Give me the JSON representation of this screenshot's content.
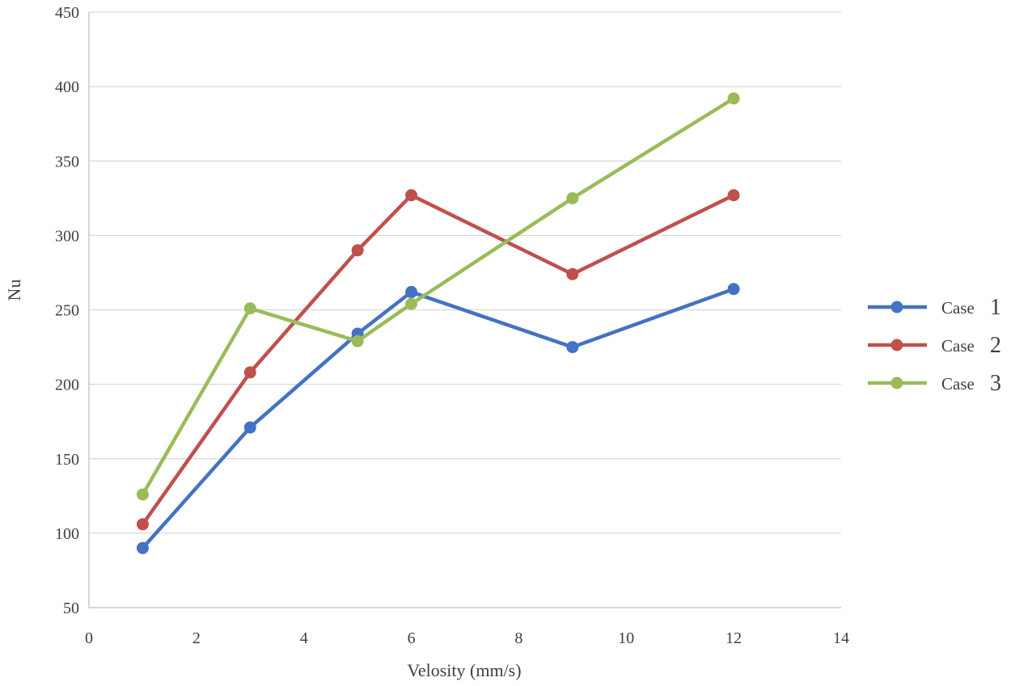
{
  "chart_data": {
    "type": "line",
    "title": "",
    "xlabel": "Velosity (mm/s)",
    "ylabel": "Nu",
    "xlim": [
      0,
      14
    ],
    "ylim": [
      50,
      450
    ],
    "xticks": [
      0,
      2,
      4,
      6,
      8,
      10,
      12,
      14
    ],
    "yticks": [
      50,
      100,
      150,
      200,
      250,
      300,
      350,
      400,
      450
    ],
    "grid": "horizontal",
    "legend_position": "right",
    "series": [
      {
        "name": "Case 1",
        "label_word": "Case",
        "label_num": "1",
        "color": "#4472c4",
        "x": [
          1,
          3,
          5,
          6,
          9,
          12
        ],
        "y": [
          90,
          171,
          234,
          262,
          225,
          264
        ]
      },
      {
        "name": "Case 2",
        "label_word": "Case",
        "label_num": "2",
        "color": "#c0504d",
        "x": [
          1,
          3,
          5,
          6,
          9,
          12
        ],
        "y": [
          106,
          208,
          290,
          327,
          274,
          327
        ]
      },
      {
        "name": "Case 3",
        "label_word": "Case",
        "label_num": "3",
        "color": "#9bbb59",
        "x": [
          1,
          3,
          5,
          6,
          9,
          12
        ],
        "y": [
          126,
          251,
          229,
          254,
          325,
          392
        ]
      }
    ]
  }
}
